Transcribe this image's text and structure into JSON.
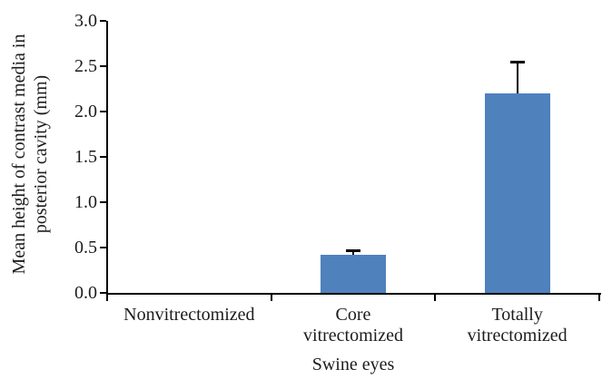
{
  "chart_data": {
    "type": "bar",
    "title": "",
    "categories": [
      "Nonvitrectomized",
      "Core vitrectomized",
      "Totally vitrectomized"
    ],
    "category_label_lines": [
      [
        "Nonvitrectomized"
      ],
      [
        "Core",
        "vitrectomized"
      ],
      [
        "Totally",
        "vitrectomized"
      ]
    ],
    "values": [
      0,
      0.42,
      2.2
    ],
    "errors_plus": [
      0,
      0.05,
      0.35
    ],
    "xlabel": "Swine eyes",
    "ylabel": "Mean height of contrast media in posterior cavity (mm)",
    "ylabel_lines": [
      "Mean height of contrast media in",
      "posterior cavity (mm)"
    ],
    "ylim": [
      0,
      3
    ],
    "ytick_step": 0.5,
    "yticks": [
      "0.0",
      "0.5",
      "1.0",
      "1.5",
      "2.0",
      "2.5",
      "3.0"
    ],
    "grid": false,
    "legend": "none",
    "bar_color": "#4f81bd",
    "axis_color": "#000000",
    "text_color": "#1c1c1c"
  }
}
